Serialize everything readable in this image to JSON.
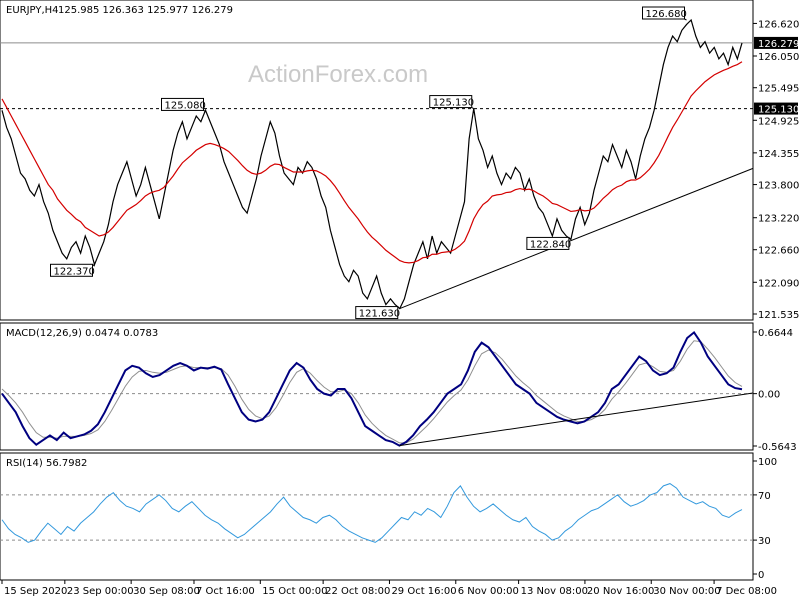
{
  "watermark": "ActionForex.com",
  "chart_data": [
    {
      "type": "line",
      "title": "EURJPY,H4",
      "ohlc_header": "125.985 126.363 125.977 126.279",
      "ylim": [
        121.535,
        126.68
      ],
      "y_ticks": [
        "126.620",
        "126.050",
        "125.495",
        "124.925",
        "124.355",
        "123.800",
        "123.220",
        "122.660",
        "122.090",
        "121.535"
      ],
      "last_price_label": "126.279",
      "last_price": 126.279,
      "level_label": "125.130",
      "level": 125.13,
      "annotations": [
        {
          "text": "125.080",
          "index": 44,
          "value": 125.08
        },
        {
          "text": "122.370",
          "index": 20,
          "value": 122.37
        },
        {
          "text": "125.130",
          "index": 102,
          "value": 125.13
        },
        {
          "text": "121.630",
          "index": 86,
          "value": 121.63
        },
        {
          "text": "122.840",
          "index": 123,
          "value": 122.84
        },
        {
          "text": "126.680",
          "index": 148,
          "value": 126.68
        }
      ],
      "price": [
        125.1,
        124.8,
        124.6,
        124.3,
        124.0,
        123.9,
        123.7,
        123.6,
        123.8,
        123.5,
        123.3,
        123.0,
        122.8,
        122.6,
        122.5,
        122.7,
        122.8,
        122.6,
        122.9,
        122.7,
        122.4,
        122.6,
        122.8,
        123.1,
        123.5,
        123.8,
        124.0,
        124.2,
        123.9,
        123.6,
        123.8,
        124.1,
        123.8,
        123.5,
        123.2,
        123.6,
        124.0,
        124.4,
        124.7,
        124.9,
        124.6,
        124.8,
        125.0,
        124.9,
        125.1,
        124.9,
        124.7,
        124.5,
        124.2,
        124.0,
        123.8,
        123.6,
        123.4,
        123.3,
        123.6,
        123.9,
        124.3,
        124.6,
        124.9,
        124.7,
        124.3,
        124.0,
        123.9,
        123.8,
        124.1,
        124.0,
        124.2,
        124.1,
        123.9,
        123.6,
        123.4,
        123.0,
        122.7,
        122.4,
        122.2,
        122.1,
        122.3,
        122.2,
        121.9,
        121.8,
        122.0,
        122.2,
        121.9,
        121.7,
        121.8,
        121.7,
        121.63,
        121.8,
        122.1,
        122.4,
        122.6,
        122.8,
        122.5,
        122.9,
        122.6,
        122.8,
        122.7,
        122.6,
        122.9,
        123.2,
        123.5,
        124.6,
        125.13,
        124.6,
        124.4,
        124.1,
        124.3,
        124.0,
        123.8,
        124.0,
        123.9,
        124.1,
        124.0,
        123.7,
        123.9,
        123.6,
        123.4,
        123.3,
        123.1,
        122.9,
        123.2,
        123.0,
        122.9,
        122.84,
        123.2,
        123.4,
        123.1,
        123.3,
        123.7,
        124.0,
        124.3,
        124.2,
        124.5,
        124.3,
        124.1,
        124.4,
        124.2,
        123.9,
        124.3,
        124.6,
        124.8,
        125.1,
        125.5,
        125.9,
        126.2,
        126.4,
        126.3,
        126.5,
        126.6,
        126.68,
        126.4,
        126.2,
        126.3,
        126.1,
        126.2,
        126.0,
        126.1,
        125.9,
        126.2,
        126.0,
        126.279
      ],
      "ma": [
        125.3,
        125.15,
        125.0,
        124.85,
        124.7,
        124.55,
        124.4,
        124.25,
        124.1,
        123.95,
        123.8,
        123.7,
        123.55,
        123.45,
        123.35,
        123.28,
        123.2,
        123.15,
        123.05,
        123.0,
        122.95,
        122.9,
        122.92,
        122.97,
        123.05,
        123.15,
        123.25,
        123.35,
        123.4,
        123.45,
        123.52,
        123.6,
        123.65,
        123.68,
        123.7,
        123.75,
        123.85,
        123.95,
        124.07,
        124.18,
        124.25,
        124.32,
        124.4,
        124.45,
        124.5,
        124.52,
        124.5,
        124.47,
        124.43,
        124.38,
        124.3,
        124.22,
        124.13,
        124.05,
        124.0,
        123.98,
        124.0,
        124.05,
        124.12,
        124.16,
        124.15,
        124.1,
        124.06,
        124.02,
        124.02,
        124.02,
        124.04,
        124.05,
        124.04,
        124.0,
        123.95,
        123.87,
        123.77,
        123.65,
        123.52,
        123.4,
        123.3,
        123.2,
        123.08,
        122.97,
        122.88,
        122.81,
        122.73,
        122.65,
        122.59,
        122.53,
        122.47,
        122.44,
        122.43,
        122.44,
        122.47,
        122.52,
        122.53,
        122.58,
        122.58,
        122.61,
        122.62,
        122.63,
        122.67,
        122.73,
        122.81,
        122.99,
        123.2,
        123.34,
        123.45,
        123.51,
        123.6,
        123.62,
        123.63,
        123.66,
        123.67,
        123.71,
        123.73,
        123.71,
        123.72,
        123.69,
        123.64,
        123.6,
        123.54,
        123.47,
        123.45,
        123.41,
        123.37,
        123.33,
        123.34,
        123.36,
        123.34,
        123.35,
        123.39,
        123.47,
        123.56,
        123.63,
        123.71,
        123.76,
        123.79,
        123.85,
        123.88,
        123.88,
        123.92,
        123.99,
        124.07,
        124.18,
        124.31,
        124.47,
        124.64,
        124.8,
        124.93,
        125.07,
        125.21,
        125.35,
        125.44,
        125.52,
        125.6,
        125.66,
        125.72,
        125.76,
        125.8,
        125.83,
        125.87,
        125.9,
        125.95
      ],
      "x_ticks": [
        {
          "label": "15 Sep 2020",
          "index": 0
        },
        {
          "label": "23 Sep 00:00",
          "index": 18
        },
        {
          "label": "30 Sep 08:00",
          "index": 37
        },
        {
          "label": "7 Oct 16:00",
          "index": 55
        },
        {
          "label": "15 Oct 00:00",
          "index": 74
        },
        {
          "label": "22 Oct 08:00",
          "index": 92
        },
        {
          "label": "29 Oct 16:00",
          "index": 111
        },
        {
          "label": "6 Nov 00:00",
          "index": 130
        },
        {
          "label": "13 Nov 08:00",
          "index": 148
        },
        {
          "label": "20 Nov 16:00",
          "index": 167
        },
        {
          "label": "30 Nov 00:00",
          "index": 186
        },
        {
          "label": "7 Dec 08:00",
          "index": 204
        }
      ],
      "trendline_from": {
        "index": 86,
        "value": 121.63
      },
      "trendline_to": {
        "index": 166,
        "value": 124.2
      }
    },
    {
      "type": "line",
      "title": "MACD(12,26,9) 0.0474 0.0783",
      "ylim": [
        -0.5643,
        0.6644
      ],
      "y_ticks": [
        "0.6644",
        "0.00",
        "-0.5643"
      ],
      "zero_label": "0.00",
      "macd": [
        0.0,
        -0.1,
        -0.2,
        -0.35,
        -0.48,
        -0.55,
        -0.5,
        -0.45,
        -0.5,
        -0.42,
        -0.48,
        -0.46,
        -0.44,
        -0.4,
        -0.33,
        -0.2,
        -0.05,
        0.1,
        0.25,
        0.3,
        0.28,
        0.22,
        0.18,
        0.2,
        0.25,
        0.3,
        0.33,
        0.3,
        0.25,
        0.28,
        0.27,
        0.29,
        0.26,
        0.1,
        -0.05,
        -0.2,
        -0.28,
        -0.3,
        -0.28,
        -0.2,
        -0.05,
        0.1,
        0.25,
        0.33,
        0.28,
        0.15,
        0.05,
        0.0,
        -0.02,
        0.05,
        0.05,
        -0.05,
        -0.2,
        -0.35,
        -0.4,
        -0.45,
        -0.5,
        -0.52,
        -0.56,
        -0.52,
        -0.45,
        -0.35,
        -0.28,
        -0.2,
        -0.1,
        0.0,
        0.05,
        0.1,
        0.25,
        0.45,
        0.55,
        0.5,
        0.4,
        0.3,
        0.2,
        0.1,
        0.05,
        0.0,
        -0.1,
        -0.15,
        -0.2,
        -0.25,
        -0.28,
        -0.3,
        -0.32,
        -0.3,
        -0.25,
        -0.2,
        -0.1,
        0.05,
        0.1,
        0.2,
        0.3,
        0.4,
        0.35,
        0.25,
        0.2,
        0.22,
        0.28,
        0.45,
        0.6,
        0.66,
        0.55,
        0.4,
        0.3,
        0.2,
        0.1,
        0.06,
        0.047
      ],
      "signal": [
        0.05,
        -0.02,
        -0.1,
        -0.2,
        -0.32,
        -0.42,
        -0.47,
        -0.47,
        -0.48,
        -0.46,
        -0.46,
        -0.46,
        -0.45,
        -0.43,
        -0.39,
        -0.3,
        -0.18,
        -0.05,
        0.08,
        0.18,
        0.24,
        0.25,
        0.23,
        0.22,
        0.23,
        0.26,
        0.29,
        0.3,
        0.28,
        0.28,
        0.28,
        0.28,
        0.27,
        0.2,
        0.08,
        -0.06,
        -0.17,
        -0.24,
        -0.27,
        -0.24,
        -0.15,
        -0.02,
        0.12,
        0.23,
        0.27,
        0.22,
        0.14,
        0.07,
        0.02,
        0.02,
        0.04,
        0.0,
        -0.1,
        -0.23,
        -0.32,
        -0.39,
        -0.45,
        -0.49,
        -0.53,
        -0.53,
        -0.49,
        -0.42,
        -0.35,
        -0.27,
        -0.18,
        -0.09,
        -0.02,
        0.04,
        0.15,
        0.3,
        0.43,
        0.47,
        0.44,
        0.37,
        0.28,
        0.19,
        0.12,
        0.06,
        -0.02,
        -0.08,
        -0.14,
        -0.2,
        -0.24,
        -0.27,
        -0.3,
        -0.3,
        -0.28,
        -0.24,
        -0.17,
        -0.06,
        0.02,
        0.11,
        0.21,
        0.31,
        0.33,
        0.29,
        0.24,
        0.23,
        0.25,
        0.35,
        0.48,
        0.57,
        0.56,
        0.48,
        0.39,
        0.29,
        0.19,
        0.12,
        0.078
      ],
      "trendline_from": {
        "index": 58,
        "value": -0.56
      },
      "trendline_to": {
        "index": 109,
        "value": 0.0
      }
    },
    {
      "type": "line",
      "title": "RSI(14) 56.7982",
      "ylim": [
        0,
        100
      ],
      "y_ticks": [
        "100",
        "70",
        "30",
        "0"
      ],
      "levels": [
        70,
        30
      ],
      "rsi": [
        48,
        40,
        35,
        32,
        28,
        30,
        38,
        45,
        40,
        35,
        42,
        38,
        45,
        50,
        55,
        62,
        68,
        72,
        65,
        60,
        58,
        55,
        62,
        66,
        70,
        65,
        58,
        55,
        60,
        64,
        58,
        52,
        48,
        45,
        40,
        36,
        32,
        35,
        40,
        45,
        50,
        55,
        62,
        68,
        60,
        55,
        50,
        48,
        45,
        50,
        52,
        48,
        42,
        38,
        35,
        32,
        30,
        28,
        32,
        38,
        44,
        50,
        48,
        55,
        52,
        58,
        55,
        50,
        60,
        72,
        78,
        68,
        60,
        55,
        58,
        62,
        57,
        52,
        48,
        46,
        50,
        42,
        38,
        35,
        30,
        32,
        38,
        42,
        48,
        52,
        56,
        58,
        62,
        66,
        70,
        64,
        60,
        62,
        65,
        70,
        72,
        78,
        80,
        76,
        68,
        65,
        62,
        64,
        60,
        58,
        52,
        50,
        54,
        57
      ],
      "x_ticks": [
        {
          "label": "15 Sep 2020",
          "index": 0
        },
        {
          "label": "23 Sep 00:00",
          "index": 18
        },
        {
          "label": "30 Sep 08:00",
          "index": 37
        },
        {
          "label": "7 Oct 16:00",
          "index": 55
        },
        {
          "label": "15 Oct 00:00",
          "index": 74
        },
        {
          "label": "22 Oct 08:00",
          "index": 92
        },
        {
          "label": "29 Oct 16:00",
          "index": 111
        },
        {
          "label": "6 Nov 00:00",
          "index": 130
        },
        {
          "label": "13 Nov 08:00",
          "index": 148
        },
        {
          "label": "20 Nov 16:00",
          "index": 167
        },
        {
          "label": "30 Nov 00:00",
          "index": 186
        },
        {
          "label": "7 Dec 08:00",
          "index": 204
        }
      ]
    }
  ],
  "colors": {
    "price": "#000000",
    "ma": "#d40000",
    "macd": "#000080",
    "signal": "#909090",
    "rsi": "#3399dd",
    "panel_border": "#000000",
    "dotted": "#8c8c8c",
    "last_price_bg": "#000000"
  }
}
